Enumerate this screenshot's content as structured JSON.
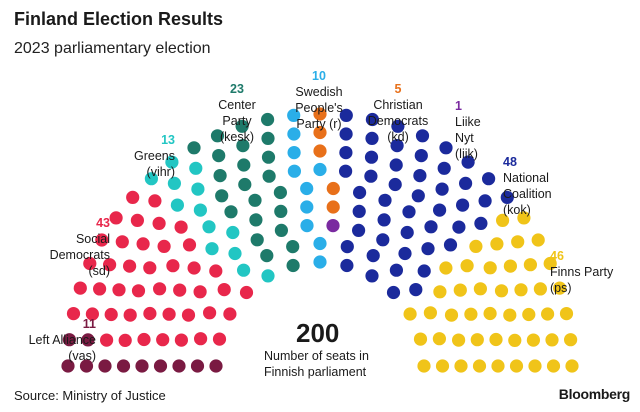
{
  "header": {
    "title": "Finland Election Results",
    "subtitle": "2023 parliamentary election"
  },
  "chart_data": {
    "type": "parliament",
    "total_seats": 200,
    "total_value": "200",
    "total_label": [
      "Number of seats in",
      "Finnish parliament"
    ],
    "parties": [
      {
        "key": "vas",
        "seats": 11,
        "name_lines": [
          "Left Alliance",
          "(vas)"
        ],
        "color": "#7a1a42"
      },
      {
        "key": "sd",
        "seats": 43,
        "name_lines": [
          "Social",
          "Democrats",
          "(sd)"
        ],
        "color": "#e8274b"
      },
      {
        "key": "vihr",
        "seats": 13,
        "name_lines": [
          "Greens",
          "(vihr)"
        ],
        "color": "#22c6c3"
      },
      {
        "key": "kesk",
        "seats": 23,
        "name_lines": [
          "Center",
          "Party",
          "(kesk)"
        ],
        "color": "#1e7a6a"
      },
      {
        "key": "r",
        "seats": 10,
        "name_lines": [
          "Swedish",
          "People's",
          "Party (r)"
        ],
        "color": "#2aaee8"
      },
      {
        "key": "kd",
        "seats": 5,
        "name_lines": [
          "Christian",
          "Democrats",
          "(kd)"
        ],
        "color": "#e8701a"
      },
      {
        "key": "liik",
        "seats": 1,
        "name_lines": [
          "Liike",
          "Nyt",
          "(liik)"
        ],
        "color": "#7a2aa0"
      },
      {
        "key": "kok",
        "seats": 48,
        "name_lines": [
          "National",
          "Coalition",
          "(kok)"
        ],
        "color": "#1b2a9c"
      },
      {
        "key": "ps",
        "seats": 46,
        "name_lines": [
          "Finns Party",
          "(ps)"
        ],
        "color": "#f0c419"
      }
    ]
  },
  "footer": {
    "source": "Source: Ministry of Justice",
    "brand": "Bloomberg"
  }
}
